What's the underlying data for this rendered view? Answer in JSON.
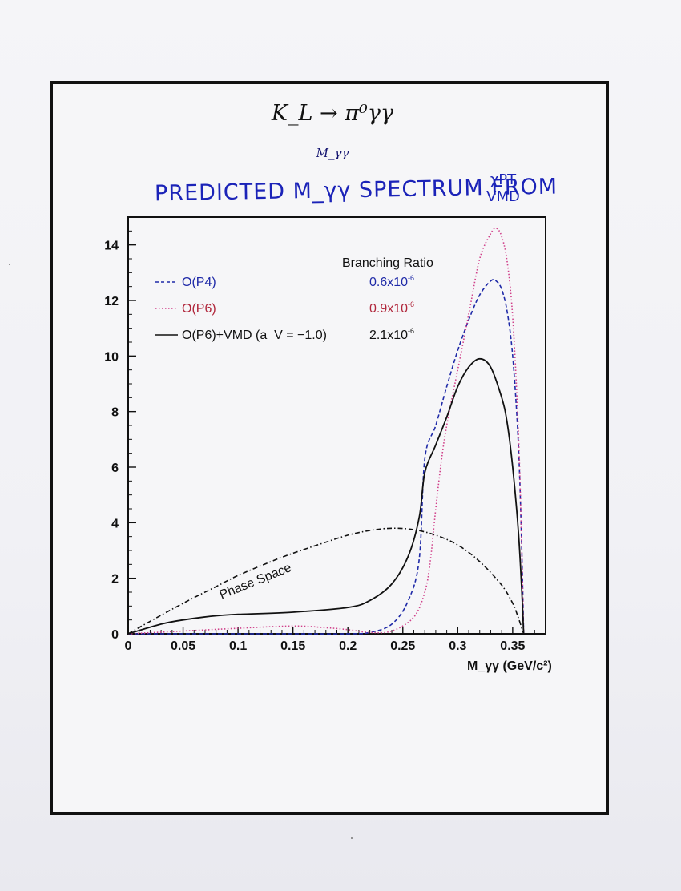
{
  "titles": {
    "reaction": "K_L → π⁰γγ",
    "subtitle": "M_γγ",
    "handwritten_title": "PREDICTED  M_γγ SPECTRUM FROM",
    "handwritten_sources": [
      "χPT",
      "VMD"
    ]
  },
  "colors": {
    "frame": "#111111",
    "p4": "#1f2aa8",
    "p6": "#d0408a",
    "vmd": "#111111",
    "phase_space": "#111111",
    "handwriting": "#1b23b8"
  },
  "chart_data": {
    "type": "line",
    "title": "",
    "xlabel": "M_γγ (GeV/c²)",
    "ylabel": "",
    "xlim": [
      0,
      0.38
    ],
    "ylim": [
      0,
      15
    ],
    "x_ticks": [
      0,
      0.05,
      0.1,
      0.15,
      0.2,
      0.25,
      0.3,
      0.35
    ],
    "x_tick_labels": [
      "0",
      "0.05",
      "0.1",
      "0.15",
      "0.2",
      "0.25",
      "0.3",
      "0.35"
    ],
    "y_ticks": [
      0,
      2,
      4,
      6,
      8,
      10,
      12,
      14
    ],
    "y_tick_labels": [
      "0",
      "2",
      "4",
      "6",
      "8",
      "10",
      "12",
      "14"
    ],
    "legend_header": "Branching Ratio",
    "legend_position": "top-left",
    "annotations": [
      {
        "text": "Phase Space",
        "x": 0.085,
        "y": 2.4
      }
    ],
    "series": [
      {
        "name": "O(P4)",
        "br_mantissa": "0.6x10",
        "br_exponent": "-6",
        "style": "dashed",
        "color": "#1f2aa8",
        "x": [
          0,
          0.05,
          0.1,
          0.15,
          0.2,
          0.22,
          0.24,
          0.255,
          0.265,
          0.27,
          0.28,
          0.29,
          0.3,
          0.31,
          0.32,
          0.33,
          0.335,
          0.34,
          0.345,
          0.35,
          0.355,
          0.358,
          0.36
        ],
        "y": [
          0,
          0,
          0,
          0,
          0,
          0.05,
          0.35,
          1.2,
          2.7,
          6.3,
          7.5,
          8.9,
          10.2,
          11.3,
          12.2,
          12.7,
          12.7,
          12.4,
          11.6,
          10.0,
          7.0,
          3.5,
          0
        ]
      },
      {
        "name": "O(P6)",
        "br_mantissa": "0.9x10",
        "br_exponent": "-6",
        "style": "dotted",
        "color": "#d0408a",
        "x": [
          0,
          0.05,
          0.1,
          0.15,
          0.18,
          0.2,
          0.22,
          0.24,
          0.26,
          0.27,
          0.275,
          0.28,
          0.285,
          0.29,
          0.3,
          0.31,
          0.32,
          0.33,
          0.335,
          0.34,
          0.345,
          0.35,
          0.355,
          0.358,
          0.36
        ],
        "y": [
          0,
          0.1,
          0.2,
          0.28,
          0.22,
          0.15,
          0.05,
          0.1,
          0.6,
          1.5,
          2.6,
          4.5,
          6.2,
          7.5,
          9.5,
          11.5,
          13.5,
          14.4,
          14.6,
          14.3,
          13.4,
          11.4,
          7.5,
          3.5,
          0
        ]
      },
      {
        "name": "O(P6)+VMD (a_V = −1.0)",
        "br_mantissa": "2.1x10",
        "br_exponent": "-6",
        "style": "solid",
        "color": "#111111",
        "x": [
          0,
          0.03,
          0.05,
          0.08,
          0.1,
          0.15,
          0.2,
          0.22,
          0.24,
          0.255,
          0.265,
          0.27,
          0.28,
          0.29,
          0.3,
          0.31,
          0.32,
          0.33,
          0.34,
          0.345,
          0.35,
          0.355,
          0.358,
          0.36
        ],
        "y": [
          0,
          0.35,
          0.5,
          0.65,
          0.7,
          0.78,
          0.95,
          1.2,
          1.8,
          2.8,
          4.2,
          5.8,
          6.8,
          7.8,
          8.9,
          9.6,
          9.9,
          9.6,
          8.5,
          7.6,
          6.0,
          3.8,
          1.8,
          0
        ]
      },
      {
        "name": "Phase Space",
        "style": "dashdot",
        "color": "#111111",
        "x": [
          0,
          0.02,
          0.05,
          0.08,
          0.1,
          0.13,
          0.15,
          0.18,
          0.2,
          0.22,
          0.24,
          0.26,
          0.28,
          0.3,
          0.32,
          0.34,
          0.35,
          0.355,
          0.36
        ],
        "y": [
          0,
          0.45,
          1.1,
          1.7,
          2.1,
          2.6,
          2.9,
          3.3,
          3.55,
          3.72,
          3.8,
          3.75,
          3.55,
          3.2,
          2.6,
          1.75,
          1.1,
          0.6,
          0
        ]
      }
    ]
  }
}
